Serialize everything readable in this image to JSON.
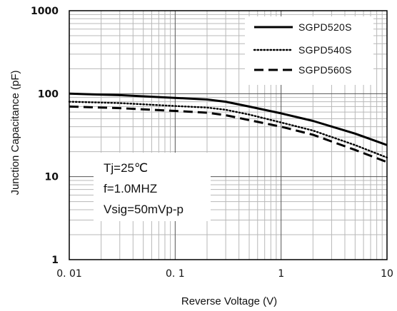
{
  "chart_data": {
    "type": "line",
    "xlabel": "Reverse Voltage (V)",
    "ylabel": "Junction Capacitance (pF)",
    "x_scale": "log",
    "y_scale": "log",
    "xlim": [
      0.01,
      10
    ],
    "ylim": [
      1,
      1000
    ],
    "x_tick_labels": [
      "0. 01",
      "0. 1",
      "1",
      "10"
    ],
    "y_tick_labels": [
      "1",
      "10",
      "100",
      "1000"
    ],
    "grid": true,
    "legend_position": "top-right",
    "series": [
      {
        "name": "SGPD520S",
        "style": "solid",
        "x": [
          0.01,
          0.03,
          0.1,
          0.2,
          0.3,
          0.5,
          1,
          2,
          5,
          10
        ],
        "y": [
          100,
          96,
          89,
          85,
          80,
          70,
          58,
          47,
          33,
          24
        ]
      },
      {
        "name": "SGPD540S",
        "style": "dotted",
        "x": [
          0.01,
          0.03,
          0.1,
          0.2,
          0.3,
          0.5,
          1,
          2,
          5,
          10
        ],
        "y": [
          80,
          77,
          71,
          68,
          64,
          56,
          45,
          36,
          24,
          17
        ]
      },
      {
        "name": "SGPD560S",
        "style": "dashed",
        "x": [
          0.01,
          0.03,
          0.1,
          0.2,
          0.3,
          0.5,
          1,
          2,
          5,
          10
        ],
        "y": [
          70,
          67,
          62,
          59,
          55,
          48,
          40,
          32,
          21,
          15
        ]
      }
    ],
    "annotations": [
      "Tj=25℃",
      "f=1.0MHZ",
      "Vsig=50mVp-p"
    ]
  }
}
